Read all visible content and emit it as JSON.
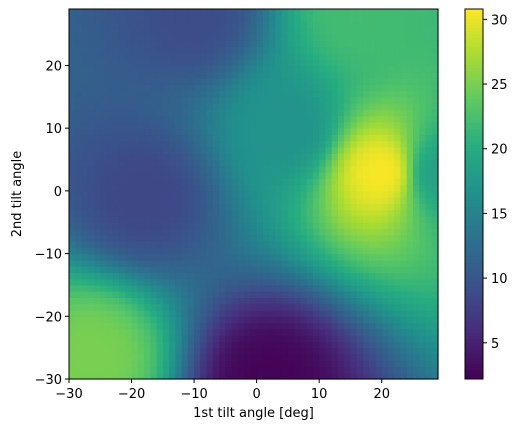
{
  "chart_data": {
    "type": "heatmap",
    "title": "",
    "xlabel": "1st tilt angle [deg]",
    "ylabel": "2nd tilt angle",
    "xlim": [
      -30,
      29
    ],
    "ylim": [
      -30,
      29
    ],
    "grid_step_deg": 1,
    "colormap": "viridis",
    "colorbar": {
      "vmin": 2.2,
      "vmax": 30.8,
      "ticks": [
        5,
        10,
        15,
        20,
        25,
        30
      ],
      "labels": [
        "5",
        "10",
        "15",
        "20",
        "25",
        "30"
      ]
    },
    "x_ticks": [
      -30,
      -20,
      -10,
      0,
      10,
      20
    ],
    "x_tick_labels": [
      "−30",
      "−20",
      "−10",
      "0",
      "10",
      "20"
    ],
    "y_ticks": [
      -30,
      -20,
      -10,
      0,
      10,
      20
    ],
    "y_tick_labels": [
      "−30",
      "−20",
      "−10",
      "0",
      "10",
      "20"
    ],
    "value_landmarks": [
      {
        "x": 20,
        "y": 3,
        "value": 30.5,
        "note": "global maximum"
      },
      {
        "x": 2,
        "y": -30,
        "value": 2.5,
        "note": "global minimum"
      },
      {
        "x": -18,
        "y": -1,
        "value": 8.5,
        "note": "local minimum"
      },
      {
        "x": -26,
        "y": -26,
        "value": 25,
        "note": "local high"
      },
      {
        "x": -10,
        "y": 28,
        "value": 9,
        "note": "low region"
      },
      {
        "x": 16,
        "y": 28,
        "value": 22,
        "note": "ridge"
      },
      {
        "x": 29,
        "y": 3,
        "value": 19,
        "note": "right edge"
      },
      {
        "x": 5,
        "y": 10,
        "value": 17,
        "note": "central plateau"
      }
    ],
    "grid": false,
    "legend": "colorbar-right"
  }
}
